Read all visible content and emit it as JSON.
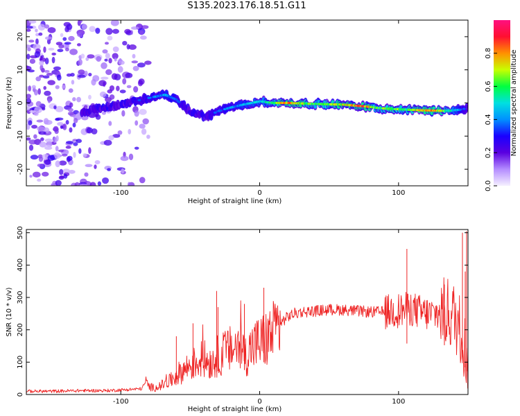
{
  "title": "S135.2023.176.18.51.G11",
  "chart_data": [
    {
      "type": "heatmap",
      "xlabel": "Height of straight line (km)",
      "ylabel": "Frequency (Hz)",
      "xlim": [
        -168,
        150
      ],
      "ylim": [
        -25,
        25
      ],
      "x_ticks": [
        -100,
        0,
        100
      ],
      "y_ticks": [
        -20,
        -10,
        0,
        10,
        20
      ],
      "colorbar": {
        "label": "Normalized spectral amplitude",
        "range": [
          0,
          1
        ],
        "ticks": [
          "0.0",
          "0.2",
          "0.4",
          "0.6",
          "0.8"
        ],
        "colormap": [
          "#f5f0ff",
          "#b48cff",
          "#5a00e0",
          "#1a00ff",
          "#0090ff",
          "#00e0e0",
          "#00ff40",
          "#c8ff00",
          "#ff9000",
          "#ff1030",
          "#ff1080"
        ]
      },
      "ridge": {
        "x": [
          -128,
          -110,
          -95,
          -80,
          -68,
          -60,
          -52,
          -45,
          -38,
          -30,
          -22,
          -12,
          0,
          10,
          20,
          40,
          60,
          75,
          85,
          95,
          105,
          115,
          125,
          135,
          145,
          150
        ],
        "y": [
          -2.5,
          -1.5,
          0.0,
          1.5,
          2.5,
          1.0,
          -2.0,
          -3.5,
          -4.0,
          -2.5,
          -1.5,
          -0.5,
          0.5,
          0.0,
          0.0,
          -0.3,
          -0.5,
          -1.0,
          -1.5,
          -1.8,
          -2.0,
          -2.2,
          -2.3,
          -2.4,
          -2.0,
          -1.5
        ],
        "amplitude": [
          0.15,
          0.2,
          0.3,
          0.35,
          0.45,
          0.35,
          0.3,
          0.25,
          0.3,
          0.35,
          0.4,
          0.45,
          0.5,
          0.6,
          0.85,
          0.6,
          0.75,
          0.9,
          0.6,
          0.7,
          0.6,
          0.75,
          0.85,
          0.6,
          0.4,
          0.3
        ]
      },
      "noise_x_range": [
        -168,
        -80
      ]
    },
    {
      "type": "line",
      "xlabel": "Height of straight line (km)",
      "ylabel": "SNR (10 * v/v)",
      "xlim": [
        -168,
        150
      ],
      "ylim": [
        0,
        510
      ],
      "x_ticks": [
        -100,
        0,
        100
      ],
      "y_ticks": [
        0,
        100,
        200,
        300,
        400,
        500
      ],
      "series": [
        {
          "color": "#ee2222",
          "x": [
            -168,
            -150,
            -130,
            -110,
            -95,
            -85,
            -82,
            -80,
            -75,
            -70,
            -65,
            -60,
            -55,
            -50,
            -45,
            -40,
            -35,
            -30,
            -25,
            -20,
            -15,
            -10,
            -5,
            0,
            5,
            10,
            15,
            20,
            25,
            30,
            40,
            50,
            60,
            70,
            80,
            90,
            100,
            105,
            110,
            115,
            120,
            125,
            130,
            135,
            140,
            145,
            150
          ],
          "y": [
            10,
            10,
            12,
            12,
            15,
            18,
            40,
            25,
            20,
            30,
            40,
            60,
            75,
            90,
            100,
            110,
            100,
            120,
            130,
            140,
            150,
            120,
            150,
            160,
            170,
            190,
            220,
            240,
            250,
            255,
            258,
            262,
            262,
            258,
            255,
            255,
            260,
            262,
            265,
            255,
            250,
            248,
            252,
            255,
            240,
            200,
            100
          ]
        }
      ],
      "spikes": [
        {
          "x": 106,
          "y": 450
        },
        {
          "x": 146,
          "y": 500
        },
        {
          "x": 149,
          "y": 505
        },
        {
          "x": 148,
          "y": 380
        },
        {
          "x": -31,
          "y": 320
        },
        {
          "x": -30,
          "y": 270
        },
        {
          "x": -11,
          "y": 280
        },
        {
          "x": -48,
          "y": 220
        },
        {
          "x": -60,
          "y": 180
        },
        {
          "x": 3,
          "y": 330
        },
        {
          "x": 133,
          "y": 340
        }
      ]
    }
  ]
}
